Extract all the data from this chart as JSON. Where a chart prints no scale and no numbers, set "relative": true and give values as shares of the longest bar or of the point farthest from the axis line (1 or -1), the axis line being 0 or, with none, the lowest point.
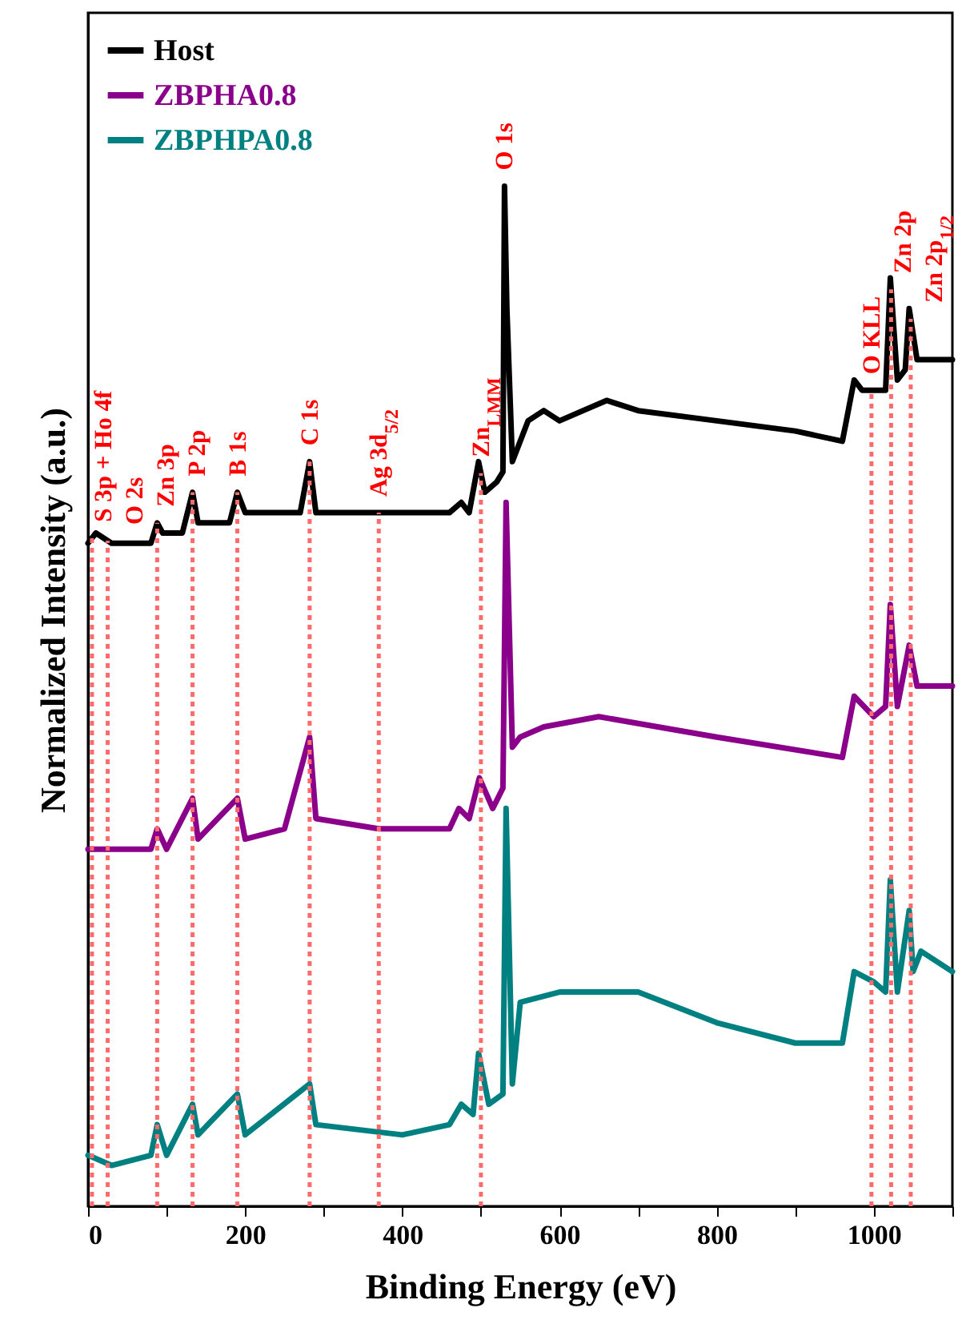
{
  "chart_data": {
    "type": "line",
    "relative": true,
    "xlabel": "Binding Energy (eV)",
    "ylabel": "Normalized Intensity (a.u.)",
    "xlim": [
      0,
      1100
    ],
    "xticks": [
      0,
      {
        "value": 100,
        "label": null
      },
      200,
      {
        "value": 300,
        "label": null
      },
      400,
      {
        "value": 500,
        "label": null
      },
      600,
      {
        "value": 700,
        "label": null
      },
      800,
      {
        "value": 900,
        "label": null
      },
      1000,
      {
        "value": 1100,
        "label": null
      }
    ],
    "legend": "top left",
    "series": [
      {
        "name": "Host",
        "color": "#000000",
        "x": [
          0,
          10,
          30,
          50,
          80,
          88,
          95,
          120,
          133,
          140,
          180,
          190,
          200,
          220,
          270,
          282,
          290,
          350,
          420,
          460,
          475,
          485,
          497,
          505,
          520,
          528,
          530,
          533,
          540,
          560,
          580,
          600,
          660,
          700,
          800,
          900,
          960,
          975,
          985,
          1000,
          1015,
          1021,
          1030,
          1040,
          1045,
          1055,
          1070,
          1100
        ],
        "values": [
          0.65,
          0.66,
          0.65,
          0.65,
          0.65,
          0.67,
          0.66,
          0.66,
          0.7,
          0.67,
          0.67,
          0.7,
          0.68,
          0.68,
          0.68,
          0.73,
          0.68,
          0.68,
          0.68,
          0.68,
          0.69,
          0.68,
          0.73,
          0.7,
          0.71,
          0.72,
          1,
          0.88,
          0.73,
          0.77,
          0.78,
          0.77,
          0.79,
          0.78,
          0.77,
          0.76,
          0.75,
          0.81,
          0.8,
          0.8,
          0.8,
          0.91,
          0.81,
          0.82,
          0.88,
          0.83,
          0.83,
          0.83
        ]
      },
      {
        "name": "ZBPHA0.8",
        "color": "#8b008b",
        "x": [
          0,
          30,
          80,
          88,
          100,
          133,
          140,
          190,
          200,
          250,
          282,
          290,
          370,
          460,
          472,
          485,
          498,
          515,
          528,
          532,
          540,
          550,
          580,
          650,
          800,
          960,
          975,
          1000,
          1015,
          1021,
          1030,
          1045,
          1055,
          1100
        ],
        "values": [
          0.35,
          0.35,
          0.35,
          0.37,
          0.35,
          0.4,
          0.36,
          0.4,
          0.36,
          0.37,
          0.46,
          0.38,
          0.37,
          0.37,
          0.39,
          0.38,
          0.42,
          0.39,
          0.41,
          0.69,
          0.45,
          0.46,
          0.47,
          0.48,
          0.46,
          0.44,
          0.5,
          0.48,
          0.49,
          0.59,
          0.49,
          0.55,
          0.51,
          0.51
        ]
      },
      {
        "name": "ZBPHPA0.8",
        "color": "#008080",
        "x": [
          0,
          30,
          80,
          88,
          100,
          133,
          140,
          190,
          200,
          282,
          290,
          400,
          460,
          475,
          490,
          497,
          510,
          528,
          532,
          540,
          550,
          600,
          660,
          700,
          800,
          900,
          960,
          975,
          1000,
          1015,
          1021,
          1030,
          1045,
          1050,
          1060,
          1100
        ],
        "values": [
          0.05,
          0.04,
          0.05,
          0.08,
          0.05,
          0.1,
          0.07,
          0.11,
          0.07,
          0.12,
          0.08,
          0.07,
          0.08,
          0.1,
          0.09,
          0.15,
          0.1,
          0.11,
          0.39,
          0.12,
          0.2,
          0.21,
          0.21,
          0.21,
          0.18,
          0.16,
          0.16,
          0.23,
          0.22,
          0.21,
          0.32,
          0.21,
          0.29,
          0.23,
          0.25,
          0.23
        ]
      }
    ],
    "ref_lines": [
      {
        "axis": "x",
        "value": 5,
        "label": "S 3p + Ho 4f",
        "color": "#ff6b6b",
        "line_style": "dotted"
      },
      {
        "axis": "x",
        "value": 25,
        "label": "O 2s",
        "color": "#ff6b6b",
        "line_style": "dotted"
      },
      {
        "axis": "x",
        "value": 88,
        "label": "Zn 3p",
        "color": "#ff6b6b",
        "line_style": "dotted"
      },
      {
        "axis": "x",
        "value": 133,
        "label": "P 2p",
        "color": "#ff6b6b",
        "line_style": "dotted"
      },
      {
        "axis": "x",
        "value": 190,
        "label": "B 1s",
        "color": "#ff6b6b",
        "line_style": "dotted"
      },
      {
        "axis": "x",
        "value": 282,
        "label": "C 1s",
        "color": "#ff6b6b",
        "line_style": "dotted"
      },
      {
        "axis": "x",
        "value": 370,
        "label": "Ag 3d$_{5/2}$",
        "color": "#ff6b6b",
        "line_style": "dotted"
      },
      {
        "axis": "x",
        "value": 500,
        "label": "Zn$_{LMM}$",
        "color": "#ff6b6b",
        "line_style": "dotted"
      },
      {
        "axis": "x",
        "value": 997,
        "label": "O KLL",
        "color": "#ff6b6b",
        "line_style": "dotted"
      },
      {
        "axis": "x",
        "value": 1022,
        "label": "Zn 2p",
        "color": "#ff6b6b",
        "line_style": "dotted"
      },
      {
        "axis": "x",
        "value": 1047,
        "label": "Zn 2p$_{1/2}$",
        "color": "#ff6b6b",
        "line_style": "dotted"
      }
    ],
    "annotations": [
      "O 1s"
    ]
  }
}
